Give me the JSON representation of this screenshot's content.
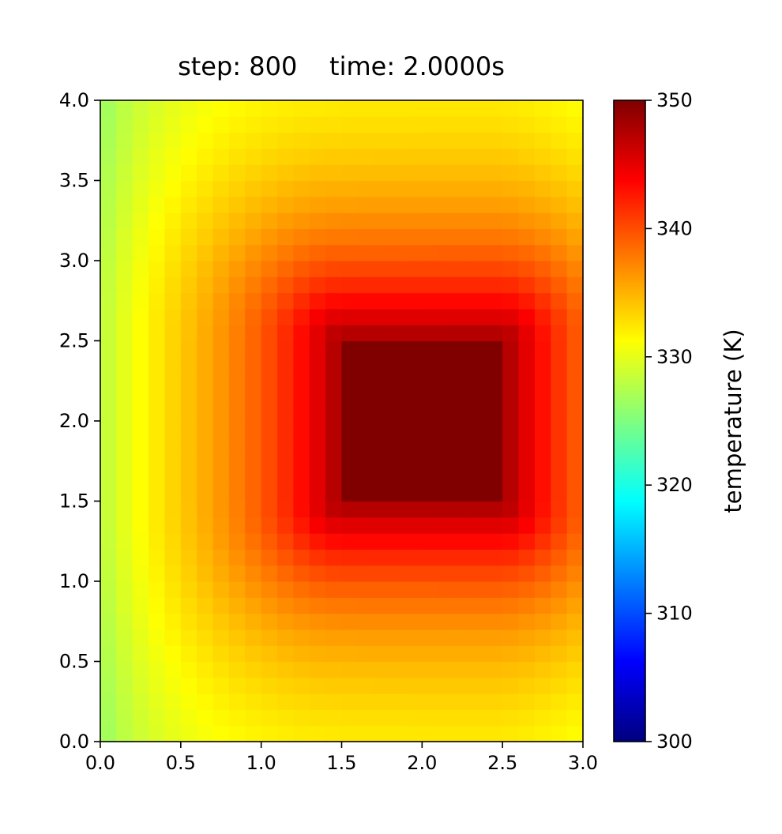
{
  "chart_data": {
    "type": "heatmap",
    "title": "step: 800    time: 2.0000s",
    "xlabel": "",
    "ylabel": "",
    "xlim": [
      0.0,
      3.0
    ],
    "ylim": [
      0.0,
      4.0
    ],
    "x_ticks": [
      "0.0",
      "0.5",
      "1.0",
      "1.5",
      "2.0",
      "2.5",
      "3.0"
    ],
    "y_ticks": [
      "0.0",
      "0.5",
      "1.0",
      "1.5",
      "2.0",
      "2.5",
      "3.0",
      "3.5",
      "4.0"
    ],
    "grid": {
      "nx": 30,
      "ny": 40,
      "dx": 0.1,
      "dy": 0.1
    },
    "heat_source": {
      "x_range": [
        1.5,
        2.5
      ],
      "y_range": [
        1.5,
        2.5
      ],
      "value": 350
    },
    "colormap": "jet",
    "colorbar": {
      "label": "temperature (K)",
      "range": [
        300,
        350
      ],
      "ticks": [
        "300",
        "310",
        "320",
        "330",
        "340",
        "350"
      ]
    },
    "grid_lines": false,
    "legend": "none"
  }
}
